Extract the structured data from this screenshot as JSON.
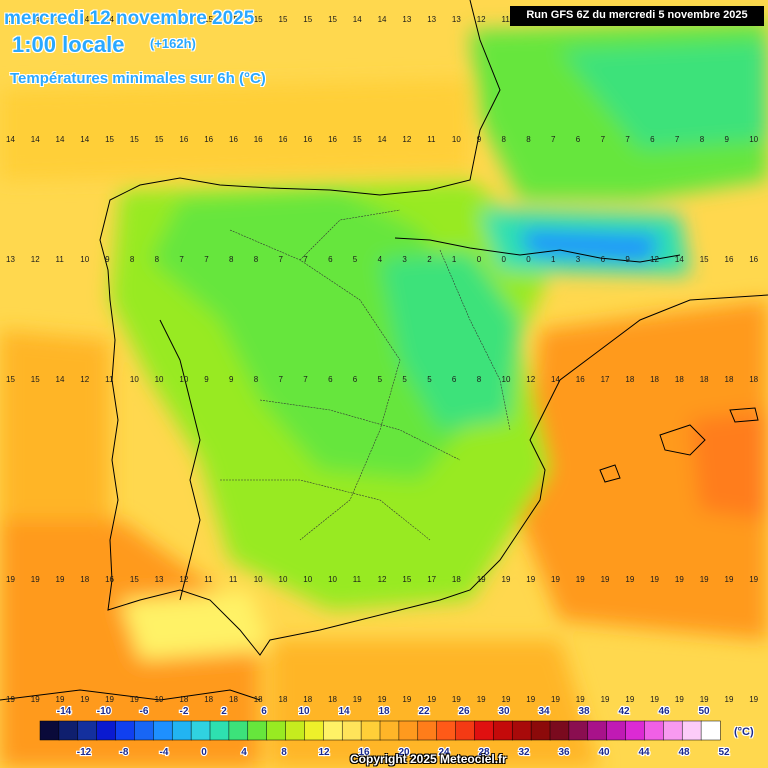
{
  "header": {
    "date": "mercredi 12 novembre 2025",
    "time": "1:00 locale",
    "offset": "(+162h)",
    "subtitle": "Températures minimales sur 6h (°C)",
    "run": "Run GFS 6Z du mercredi 5 novembre 2025"
  },
  "footer": {
    "copyright": "Copyright 2025 Meteociel.fr",
    "unit": "(°C)"
  },
  "legend": {
    "top_labels": [
      "-14",
      "-10",
      "-6",
      "-2",
      "2",
      "6",
      "10",
      "14",
      "18",
      "22",
      "26",
      "30",
      "34",
      "38",
      "42",
      "46",
      "50"
    ],
    "bottom_labels": [
      "-12",
      "-8",
      "-4",
      "0",
      "4",
      "8",
      "12",
      "16",
      "20",
      "24",
      "28",
      "32",
      "36",
      "40",
      "44",
      "48",
      "52"
    ],
    "colors": [
      "#0a0a3a",
      "#0f1f6e",
      "#14309e",
      "#0a1ad0",
      "#1040f0",
      "#1866f5",
      "#1e90ff",
      "#22b4f2",
      "#30d2e0",
      "#2ee0b0",
      "#3ce27a",
      "#66e63c",
      "#98ea22",
      "#c6ec1e",
      "#eef02a",
      "#fff266",
      "#ffe45a",
      "#ffcf38",
      "#ffb528",
      "#ff9a1e",
      "#ff7d1a",
      "#ff5a18",
      "#f43a14",
      "#e01010",
      "#c40a0a",
      "#a80a0a",
      "#8c0a0a",
      "#7a0a1e",
      "#8a0e50",
      "#a8128a",
      "#c01ab4",
      "#dc2ad4",
      "#f060e6",
      "#f89af0",
      "#fcccf8",
      "#ffffff"
    ]
  },
  "map": {
    "sample_rows": [
      {
        "label": "row-top",
        "values": [
          "13",
          "14",
          "14",
          "14",
          "14",
          "14",
          "15",
          "15",
          "15",
          "15",
          "15",
          "15",
          "15",
          "15",
          "14",
          "14",
          "13",
          "13",
          "13",
          "12",
          "11",
          "10",
          "9",
          "9",
          "7",
          "6",
          "5",
          "4",
          "5",
          "5",
          "6"
        ]
      },
      {
        "label": "row-north-coast",
        "values": [
          "14",
          "14",
          "14",
          "14",
          "15",
          "15",
          "15",
          "16",
          "16",
          "16",
          "16",
          "16",
          "16",
          "16",
          "15",
          "14",
          "12",
          "11",
          "10",
          "9",
          "8",
          "8",
          "7",
          "6",
          "7",
          "7",
          "6",
          "7",
          "8",
          "9",
          "10"
        ]
      },
      {
        "label": "row-pyrenees",
        "values": [
          "13",
          "12",
          "11",
          "10",
          "9",
          "8",
          "8",
          "7",
          "7",
          "8",
          "8",
          "7",
          "7",
          "6",
          "5",
          "4",
          "3",
          "2",
          "1",
          "0",
          "0",
          "0",
          "1",
          "3",
          "6",
          "9",
          "12",
          "14",
          "15",
          "16",
          "16"
        ]
      },
      {
        "label": "row-center",
        "values": [
          "15",
          "15",
          "14",
          "12",
          "11",
          "10",
          "10",
          "10",
          "9",
          "9",
          "8",
          "7",
          "7",
          "6",
          "6",
          "5",
          "5",
          "5",
          "6",
          "8",
          "10",
          "12",
          "14",
          "16",
          "17",
          "18",
          "18",
          "18",
          "18",
          "18",
          "18"
        ]
      },
      {
        "label": "row-south",
        "values": [
          "19",
          "19",
          "19",
          "18",
          "16",
          "15",
          "13",
          "12",
          "11",
          "11",
          "10",
          "10",
          "10",
          "10",
          "11",
          "12",
          "15",
          "17",
          "18",
          "19",
          "19",
          "19",
          "19",
          "19",
          "19",
          "19",
          "19",
          "19",
          "19",
          "19",
          "19"
        ]
      },
      {
        "label": "row-bottom",
        "values": [
          "19",
          "19",
          "19",
          "19",
          "19",
          "19",
          "19",
          "18",
          "18",
          "18",
          "18",
          "18",
          "18",
          "18",
          "19",
          "19",
          "19",
          "19",
          "19",
          "19",
          "19",
          "19",
          "19",
          "19",
          "19",
          "19",
          "19",
          "19",
          "19",
          "19",
          "19"
        ]
      }
    ]
  }
}
